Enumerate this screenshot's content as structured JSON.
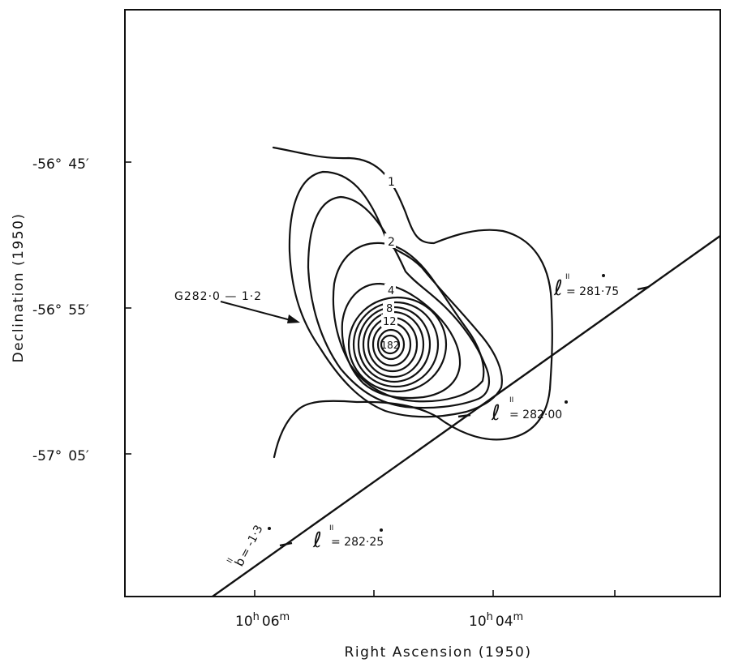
{
  "figure": {
    "source_label": "G282·0 — 1·2",
    "axes": {
      "xlabel": "Right Ascension (1950)",
      "ylabel": "Declination (1950)",
      "y_ticks": [
        {
          "deg": "-56°",
          "min": "45′"
        },
        {
          "deg": "-56°",
          "min": "55′"
        },
        {
          "deg": "-57°",
          "min": "05′"
        }
      ],
      "x_ticks": [
        {
          "h": "10",
          "hs": "h",
          "m": "06",
          "ms": "m"
        },
        {
          "h": "10",
          "hs": "h",
          "m": "04",
          "ms": "m"
        }
      ]
    },
    "contour_labels": [
      "1",
      "2",
      "4",
      "8",
      "12",
      "182"
    ],
    "galactic": {
      "l_symbol": "ℓ",
      "sup": "II",
      "b_symbol": "b",
      "l_1": "= 281·75",
      "l_2": "= 282·00",
      "l_3": "= 282·25",
      "b_1": "= -1·3"
    }
  }
}
